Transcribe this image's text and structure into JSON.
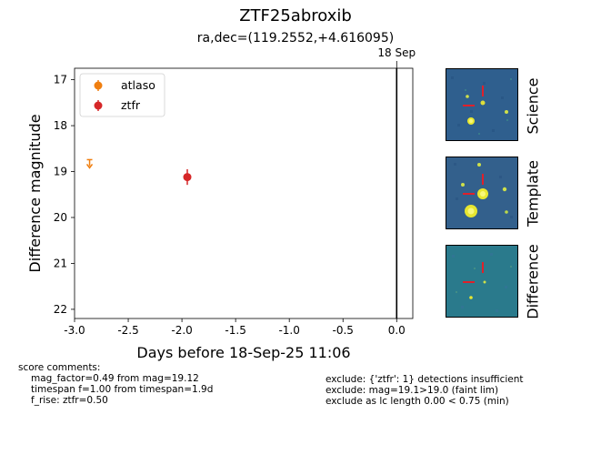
{
  "page": {
    "title": "ZTF25abroxib",
    "subtitle": "ra,dec=(119.2552,+4.616095)"
  },
  "chart_data": {
    "type": "scatter",
    "xlabel": "Days before 18-Sep-25 11:06",
    "ylabel": "Difference magnitude",
    "xlim": [
      -3.0,
      0.15
    ],
    "ylim": [
      22.2,
      16.75
    ],
    "y_inverted": true,
    "xticks": [
      "-3.0",
      "-2.5",
      "-2.0",
      "-1.5",
      "-1.0",
      "-0.5",
      "0.0"
    ],
    "yticks": [
      "17",
      "18",
      "19",
      "20",
      "21",
      "22"
    ],
    "legend_position": "top-left",
    "marker_line": {
      "x": 0.0,
      "label": "18 Sep",
      "color": "#000000"
    },
    "series": [
      {
        "name": "atlaso",
        "color": "#f07f10",
        "kind": "upper_limit",
        "points": [
          {
            "x": -2.86,
            "y": 18.82
          }
        ]
      },
      {
        "name": "ztfr",
        "color": "#d62728",
        "kind": "detection",
        "points": [
          {
            "x": -1.95,
            "y": 19.12,
            "err": 0.17
          }
        ]
      }
    ]
  },
  "cutouts": [
    {
      "label": "Science",
      "bg": "#2f5f8e"
    },
    {
      "label": "Template",
      "bg": "#33608c"
    },
    {
      "label": "Difference",
      "bg": "#2a7a8c"
    }
  ],
  "comments": {
    "heading": "score comments:",
    "lines": [
      "mag_factor=0.49 from mag=19.12",
      "timespan f=1.00 from timespan=1.9d",
      "f_rise: ztfr=0.50"
    ]
  },
  "exclusions": [
    "exclude: {'ztfr': 1} detections insufficient",
    "exclude: mag=19.1>19.0 (faint lim)",
    "exclude as lc length 0.00 < 0.75 (min)"
  ]
}
